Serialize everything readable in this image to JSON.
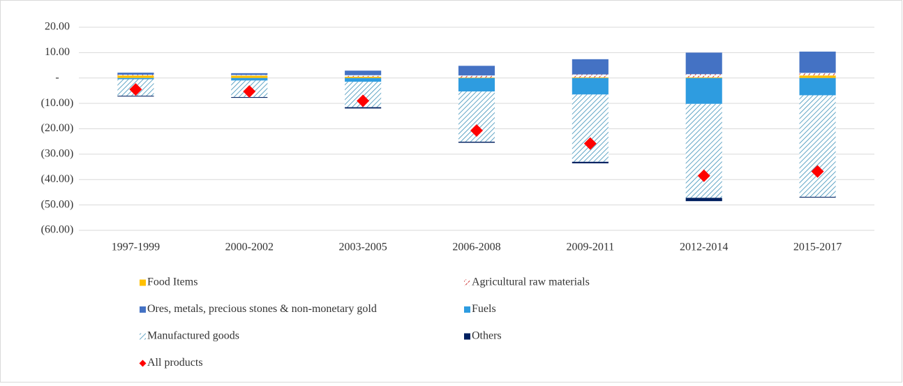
{
  "chart_data": {
    "type": "bar",
    "stacked": true,
    "categories": [
      "1997-1999",
      "2000-2002",
      "2003-2005",
      "2006-2008",
      "2009-2011",
      "2012-2014",
      "2015-2017"
    ],
    "series": [
      {
        "name": "Food Items",
        "color": "#ffc000",
        "values": [
          1.0,
          0.9,
          0.5,
          0.2,
          0.3,
          0.3,
          1.0
        ]
      },
      {
        "name": "Agricultural raw materials",
        "color": "#c00000",
        "pattern": "dashed-diagonal",
        "values": [
          0.3,
          0.3,
          0.6,
          0.8,
          1.1,
          1.2,
          1.0
        ]
      },
      {
        "name": "Ores, metals, precious stones & non-monetary gold",
        "color": "#4472c4",
        "values": [
          0.8,
          0.7,
          1.8,
          3.8,
          6.0,
          8.5,
          8.4
        ]
      },
      {
        "name": "Fuels",
        "color": "#2e9ce0",
        "values": [
          -0.5,
          -1.0,
          -1.5,
          -5.3,
          -6.5,
          -10.2,
          -6.8
        ]
      },
      {
        "name": "Manufactured goods",
        "color": "#3a8fb7",
        "pattern": "diagonal",
        "values": [
          -6.5,
          -6.5,
          -10.0,
          -19.8,
          -26.5,
          -37.0,
          -40.0
        ]
      },
      {
        "name": "Others",
        "color": "#002060",
        "values": [
          -0.3,
          -0.3,
          -0.5,
          -0.4,
          -0.6,
          -1.3,
          -0.3
        ]
      },
      {
        "name": "All products",
        "color": "#ff0000",
        "type": "scatter",
        "marker": "diamond",
        "values": [
          -4.5,
          -5.3,
          -9.0,
          -20.7,
          -25.8,
          -38.5,
          -36.8
        ]
      }
    ],
    "ylim": [
      -60,
      20
    ],
    "yticks": [
      {
        "value": -60,
        "label": "(60.00)"
      },
      {
        "value": -50,
        "label": "(50.00)"
      },
      {
        "value": -40,
        "label": "(40.00)"
      },
      {
        "value": -30,
        "label": "(30.00)"
      },
      {
        "value": -20,
        "label": "(20.00)"
      },
      {
        "value": -10,
        "label": "(10.00)"
      },
      {
        "value": 0,
        "label": "-"
      },
      {
        "value": 10,
        "label": "10.00"
      },
      {
        "value": 20,
        "label": "20.00"
      }
    ],
    "grid": true,
    "legend": "bottom"
  }
}
